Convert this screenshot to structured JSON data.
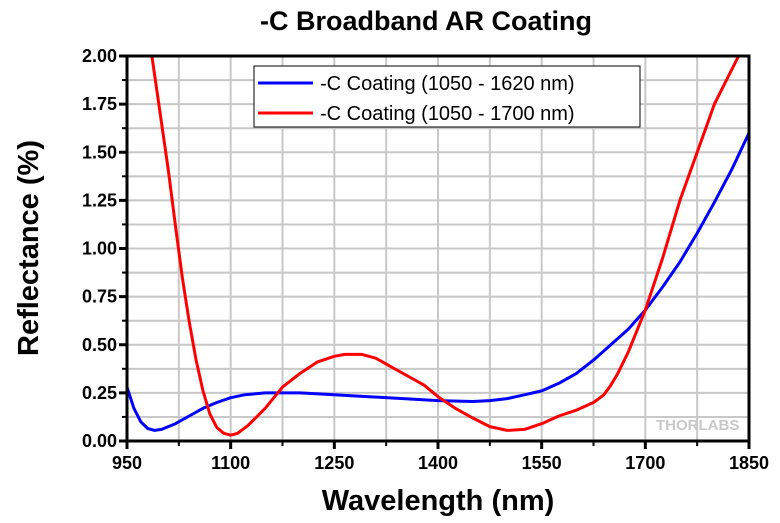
{
  "chart_data": {
    "type": "line",
    "title": "-C Broadband AR Coating",
    "xlabel": "Wavelength (nm)",
    "ylabel": "Reflectance (%)",
    "xlim": [
      950,
      1850
    ],
    "ylim": [
      0,
      2.0
    ],
    "xticks": [
      950,
      1100,
      1250,
      1400,
      1550,
      1700,
      1850
    ],
    "xtick_labels": [
      "950",
      "1100",
      "1250",
      "1400",
      "1550",
      "1700",
      "1850"
    ],
    "yticks": [
      0,
      0.25,
      0.5,
      0.75,
      1.0,
      1.25,
      1.5,
      1.75,
      2.0
    ],
    "ytick_labels": [
      "0.00",
      "0.25",
      "0.50",
      "0.75",
      "1.00",
      "1.25",
      "1.50",
      "1.75",
      "2.00"
    ],
    "grid": true,
    "legend": "top-center",
    "watermark": "THORLABS",
    "series": [
      {
        "name": "-C Coating (1050 - 1620 nm)",
        "color": "#0000ff",
        "x": [
          950,
          960,
          970,
          980,
          990,
          1000,
          1020,
          1040,
          1060,
          1080,
          1100,
          1120,
          1150,
          1180,
          1200,
          1250,
          1300,
          1350,
          1400,
          1450,
          1475,
          1500,
          1525,
          1550,
          1575,
          1600,
          1625,
          1650,
          1675,
          1700,
          1725,
          1750,
          1775,
          1800,
          1825,
          1850
        ],
        "y": [
          0.28,
          0.17,
          0.1,
          0.065,
          0.055,
          0.06,
          0.09,
          0.13,
          0.17,
          0.2,
          0.225,
          0.24,
          0.25,
          0.25,
          0.25,
          0.24,
          0.23,
          0.22,
          0.21,
          0.205,
          0.21,
          0.22,
          0.24,
          0.26,
          0.3,
          0.35,
          0.42,
          0.5,
          0.58,
          0.68,
          0.8,
          0.93,
          1.08,
          1.24,
          1.41,
          1.6
        ]
      },
      {
        "name": "-C Coating (1050 - 1700 nm)",
        "color": "#ff0000",
        "x": [
          986,
          1000,
          1010,
          1020,
          1030,
          1040,
          1050,
          1060,
          1070,
          1080,
          1090,
          1100,
          1110,
          1125,
          1150,
          1175,
          1200,
          1225,
          1250,
          1265,
          1290,
          1310,
          1330,
          1360,
          1380,
          1400,
          1425,
          1450,
          1475,
          1500,
          1525,
          1550,
          1575,
          1600,
          1625,
          1640,
          1650,
          1660,
          1675,
          1700,
          1725,
          1750,
          1775,
          1800,
          1835
        ],
        "y": [
          2.0,
          1.65,
          1.4,
          1.12,
          0.85,
          0.62,
          0.42,
          0.26,
          0.14,
          0.07,
          0.04,
          0.03,
          0.04,
          0.08,
          0.17,
          0.28,
          0.35,
          0.41,
          0.44,
          0.45,
          0.45,
          0.43,
          0.39,
          0.33,
          0.29,
          0.23,
          0.17,
          0.12,
          0.075,
          0.055,
          0.06,
          0.09,
          0.13,
          0.16,
          0.2,
          0.24,
          0.29,
          0.35,
          0.46,
          0.68,
          0.95,
          1.25,
          1.5,
          1.75,
          2.0
        ]
      }
    ]
  }
}
